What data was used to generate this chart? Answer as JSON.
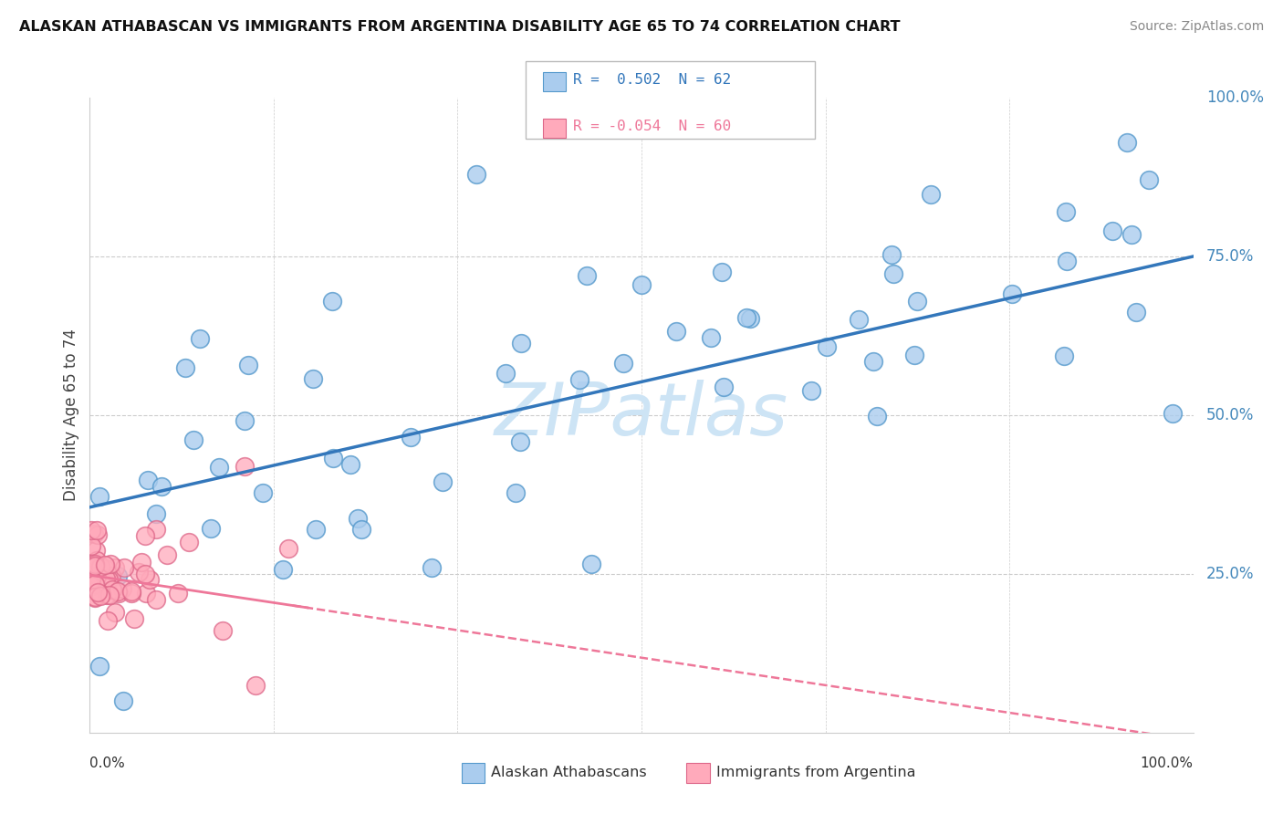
{
  "title": "ALASKAN ATHABASCAN VS IMMIGRANTS FROM ARGENTINA DISABILITY AGE 65 TO 74 CORRELATION CHART",
  "source": "Source: ZipAtlas.com",
  "ylabel": "Disability Age 65 to 74",
  "xlim": [
    0.0,
    1.0
  ],
  "ylim": [
    0.0,
    1.0
  ],
  "r1": 0.502,
  "n1": 62,
  "r2": -0.054,
  "n2": 60,
  "blue_fill": "#aaccee",
  "blue_edge": "#5599cc",
  "pink_fill": "#ffaabb",
  "pink_edge": "#dd6688",
  "blue_line": "#3377bb",
  "pink_line": "#ee7799",
  "blue_line_intercept": 0.355,
  "blue_line_slope": 0.395,
  "pink_line_intercept": 0.248,
  "pink_line_slope": -0.26,
  "watermark_color": "#cde4f5",
  "grid_color": "#cccccc",
  "right_tick_color": "#4488bb",
  "ytick_pcts": [
    "25.0%",
    "50.0%",
    "75.0%",
    "100.0%"
  ],
  "ytick_vals": [
    0.25,
    0.5,
    0.75,
    1.0
  ]
}
